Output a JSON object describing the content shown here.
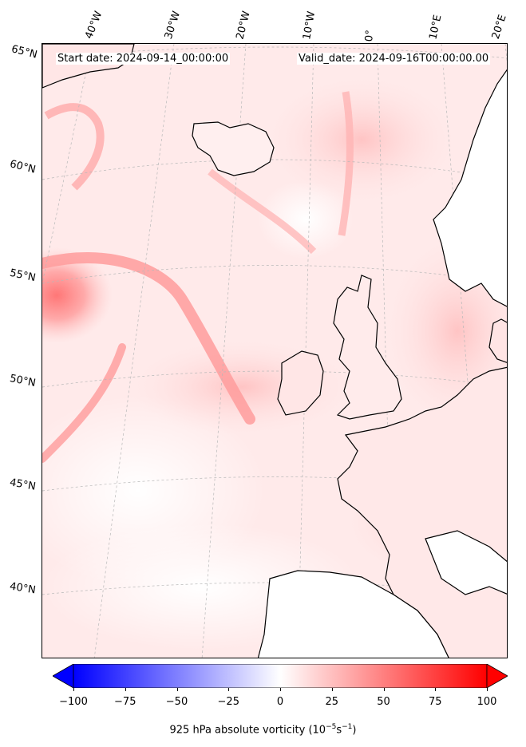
{
  "header": {
    "start_date": "Start date: 2024-09-14_00:00:00",
    "valid_date": "Valid_date: 2024-09-16T00:00:00.00"
  },
  "longitude_labels": [
    "40°W",
    "30°W",
    "20°W",
    "10°W",
    "0°",
    "10°E",
    "20°E"
  ],
  "latitude_labels": [
    "65°N",
    "60°N",
    "55°N",
    "50°N",
    "45°N",
    "40°N"
  ],
  "colorbar": {
    "ticks": [
      "−100",
      "−75",
      "−50",
      "−25",
      "0",
      "25",
      "50",
      "75",
      "100"
    ],
    "tick_values": [
      -100,
      -75,
      -50,
      -25,
      0,
      25,
      50,
      75,
      100
    ],
    "range": [
      -100,
      100
    ],
    "colormap": "bwr",
    "negative_color": "#0000ff",
    "zero_color": "#ffffff",
    "positive_color": "#ff0000",
    "label_prefix": "925 hPa absolute vorticity (10",
    "label_exp1": "−5",
    "label_mid": "s",
    "label_exp2": "−1",
    "label_suffix": ")"
  },
  "map": {
    "projection": "conic",
    "coastline_color": "#000000",
    "gridline_color": "#b0b0b0",
    "land_clear_color": "#ffffff"
  }
}
